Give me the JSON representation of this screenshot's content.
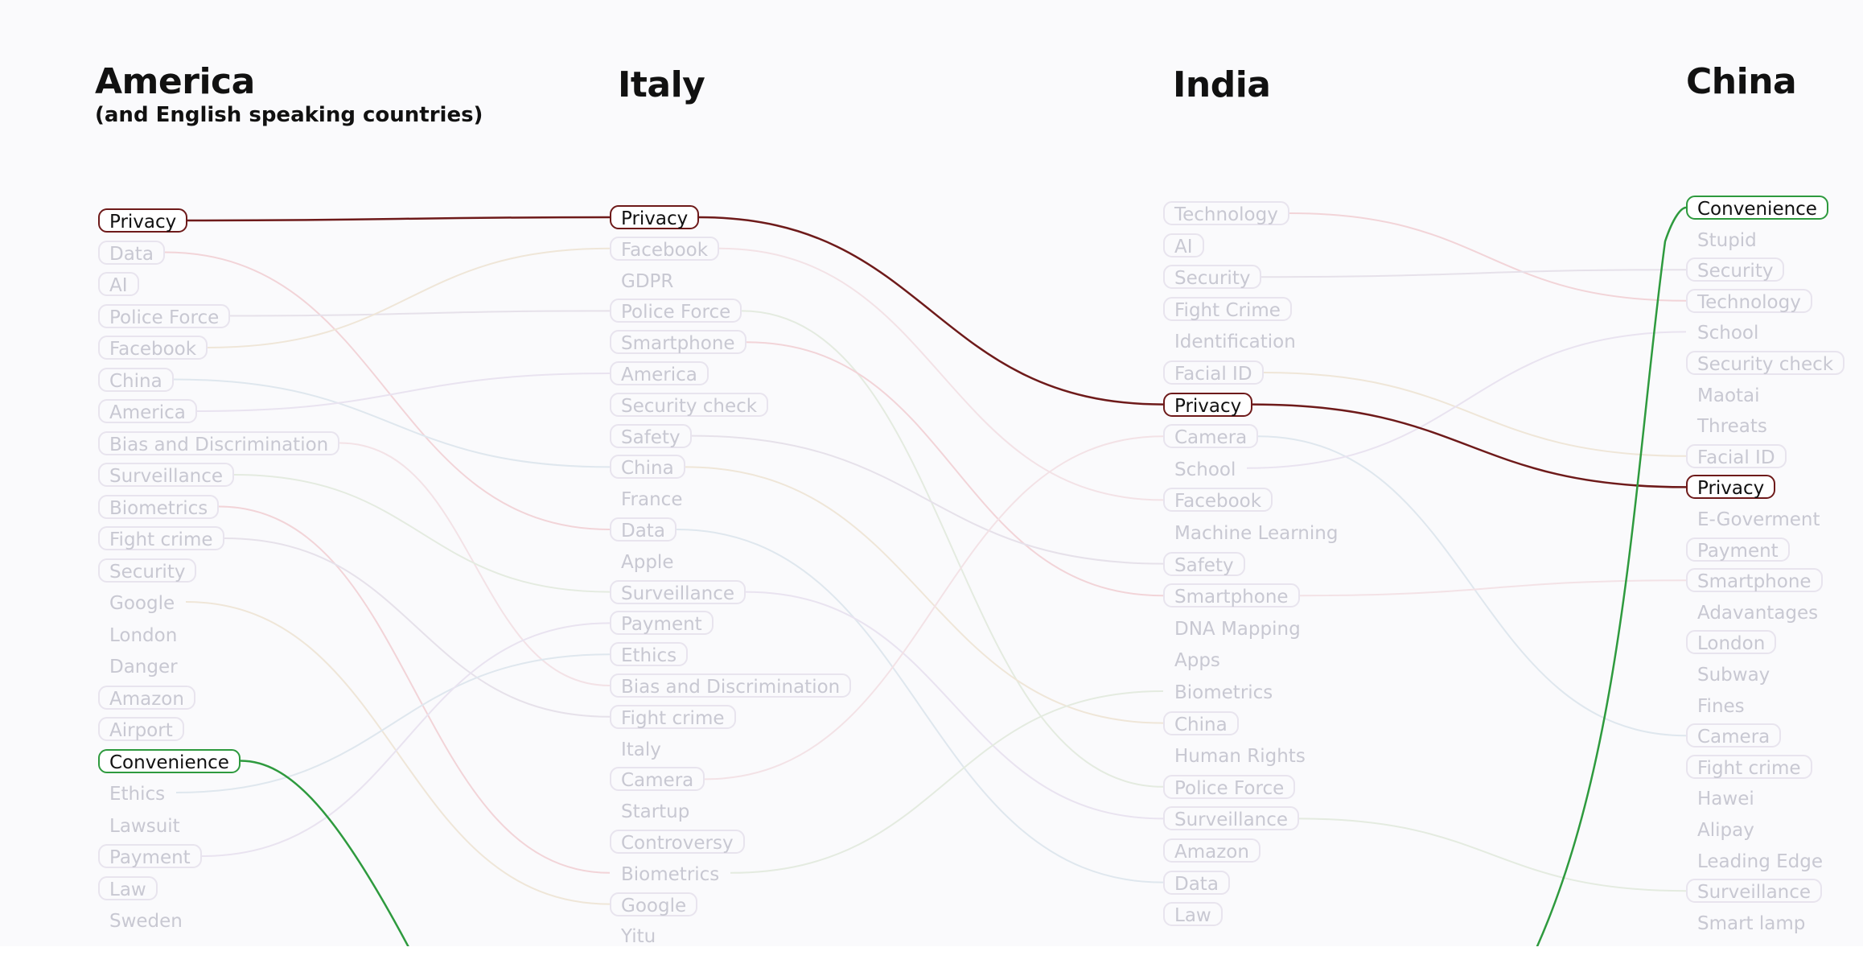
{
  "columns": [
    {
      "title": "America",
      "subtitle": "(and English speaking countries)",
      "items": [
        "Privacy",
        "Data",
        "AI",
        "Police Force",
        "Facebook",
        "China",
        "America",
        "Bias and Discrimination",
        "Surveillance",
        "Biometrics",
        "Fight crime",
        "Security",
        "Google",
        "London",
        "Danger",
        "Amazon",
        "Airport",
        "Convenience",
        "Ethics",
        "Lawsuit",
        "Payment",
        "Law",
        "Sweden"
      ]
    },
    {
      "title": "Italy",
      "subtitle": "",
      "items": [
        "Privacy",
        "Facebook",
        "GDPR",
        "Police Force",
        "Smartphone",
        "America",
        "Security check",
        "Safety",
        "China",
        "France",
        "Data",
        "Apple",
        "Surveillance",
        "Payment",
        "Ethics",
        "Bias and Discrimination",
        "Fight crime",
        "Italy",
        "Camera",
        "Startup",
        "Controversy",
        "Biometrics",
        "Google",
        "Yitu"
      ]
    },
    {
      "title": "India",
      "subtitle": "",
      "items": [
        "Technology",
        "AI",
        "Security",
        "Fight Crime",
        "Identification",
        "Facial ID",
        "Privacy",
        "Camera",
        "School",
        "Facebook",
        "Machine Learning",
        "Safety",
        "Smartphone",
        "DNA Mapping",
        "Apps",
        "Biometrics",
        "China",
        "Human Rights",
        "Police Force",
        "Surveillance",
        "Amazon",
        "Data",
        "Law"
      ]
    },
    {
      "title": "China",
      "subtitle": "",
      "items": [
        "Convenience",
        "Stupid",
        "Security",
        "Technology",
        "School",
        "Security check",
        "Maotai",
        "Threats",
        "Facial ID",
        "Privacy",
        "E-Goverment",
        "Payment",
        "Smartphone",
        "Adavantages",
        "London",
        "Subway",
        "Fines",
        "Camera",
        "Fight crime",
        "Hawei",
        "Alipay",
        "Leading Edge",
        "Surveillance",
        "Smart lamp"
      ]
    }
  ],
  "highlight_colors": {
    "privacy": "#6e1a1a",
    "convenience": "#2e9a3e"
  }
}
